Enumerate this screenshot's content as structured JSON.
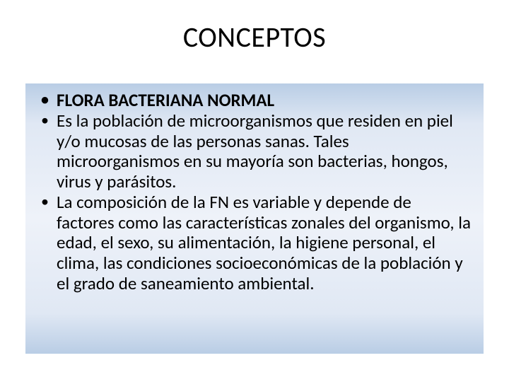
{
  "slide": {
    "title": "CONCEPTOS",
    "background_color": "#ffffff",
    "title_color": "#000000",
    "title_fontsize": 40,
    "content_box": {
      "gradient_colors": [
        "#b9cde5",
        "#e0e8f4",
        "#eef2f9",
        "#e0e8f4",
        "#b9cde5"
      ],
      "text_color": "#000000",
      "bullet_fontsize": 25,
      "bullets": [
        {
          "text": "FLORA BACTERIANA NORMAL",
          "bold": true
        },
        {
          "text": "Es la población de microorganismos que residen en piel y/o mucosas de las personas sanas. Tales microorganismos en su mayoría son bacterias, hongos, virus y parásitos.",
          "bold": false
        },
        {
          "text": "La composición de la FN es variable y depende de factores como las características zonales del organismo, la edad, el sexo, su alimentación, la higiene personal, el clima, las condiciones socioeconómicas de la población y el grado de saneamiento ambiental.",
          "bold": false
        }
      ]
    }
  }
}
